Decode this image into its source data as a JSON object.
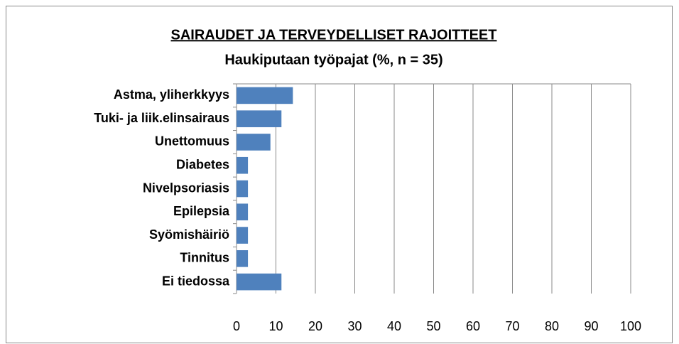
{
  "chart_data": {
    "type": "bar",
    "orientation": "horizontal",
    "title": "SAIRAUDET JA TERVEYDELLISET RAJOITTEET",
    "subtitle": "Haukiputaan työpajat  (%,  n = 35)",
    "categories": [
      "Astma, yliherkkyys",
      "Tuki- ja liik.elinsairaus",
      "Unettomuus",
      "Diabetes",
      "Nivelpsoriasis",
      "Epilepsia",
      "Syömishäiriö",
      "Tinnitus",
      "Ei tiedossa"
    ],
    "values": [
      14.3,
      11.4,
      8.6,
      2.9,
      2.9,
      2.9,
      2.9,
      2.9,
      11.4
    ],
    "color": "#4f81bd",
    "xlim": [
      0,
      100
    ],
    "xticks": [
      0,
      10,
      20,
      30,
      40,
      50,
      60,
      70,
      80,
      90,
      100
    ],
    "grid": true
  }
}
